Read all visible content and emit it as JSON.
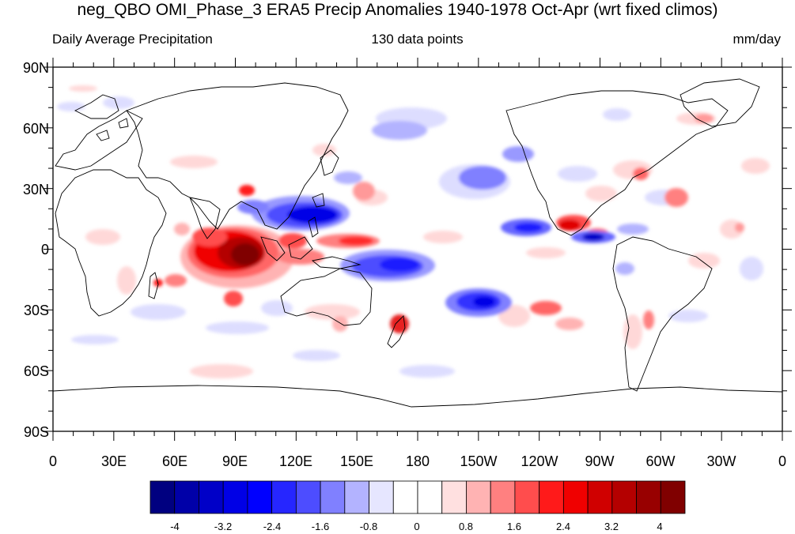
{
  "title": "neg_QBO OMI_Phase_3 ERA5 Precip Anomalies 1940-1978 Oct-Apr (wrt fixed climos)",
  "subtitle_left": "Daily Average Precipitation",
  "subtitle_center": "130 data points",
  "subtitle_right": "mm/day",
  "lat_ticks": [
    "90N",
    "60N",
    "30N",
    "0",
    "30S",
    "60S",
    "90S"
  ],
  "lon_ticks": [
    "0",
    "30E",
    "60E",
    "90E",
    "120E",
    "150E",
    "180",
    "150W",
    "120W",
    "90W",
    "60W",
    "30W",
    "0"
  ],
  "colorbar": {
    "colors": [
      "#000080",
      "#0000a8",
      "#0000c8",
      "#0000e6",
      "#0000ff",
      "#2626ff",
      "#4d4dff",
      "#8080ff",
      "#b3b3ff",
      "#e6e6ff",
      "#ffffff",
      "#ffffff",
      "#ffe0e0",
      "#ffb3b3",
      "#ff8080",
      "#ff4d4d",
      "#ff1a1a",
      "#f00000",
      "#d00000",
      "#b40000",
      "#980000",
      "#800000"
    ],
    "labels": [
      "-4",
      "-3.2",
      "-2.4",
      "-1.6",
      "-0.8",
      "0",
      "0.8",
      "1.6",
      "2.4",
      "3.2",
      "4"
    ]
  },
  "colors": {
    "strong_positive": "#990000",
    "positive": "#e60000",
    "weak_positive": "#ff8c8c",
    "faint_positive": "#ffd6d6",
    "strong_negative": "#1a1aff",
    "negative": "#4d4dff",
    "weak_negative": "#9999ff",
    "faint_negative": "#dcdcff"
  }
}
